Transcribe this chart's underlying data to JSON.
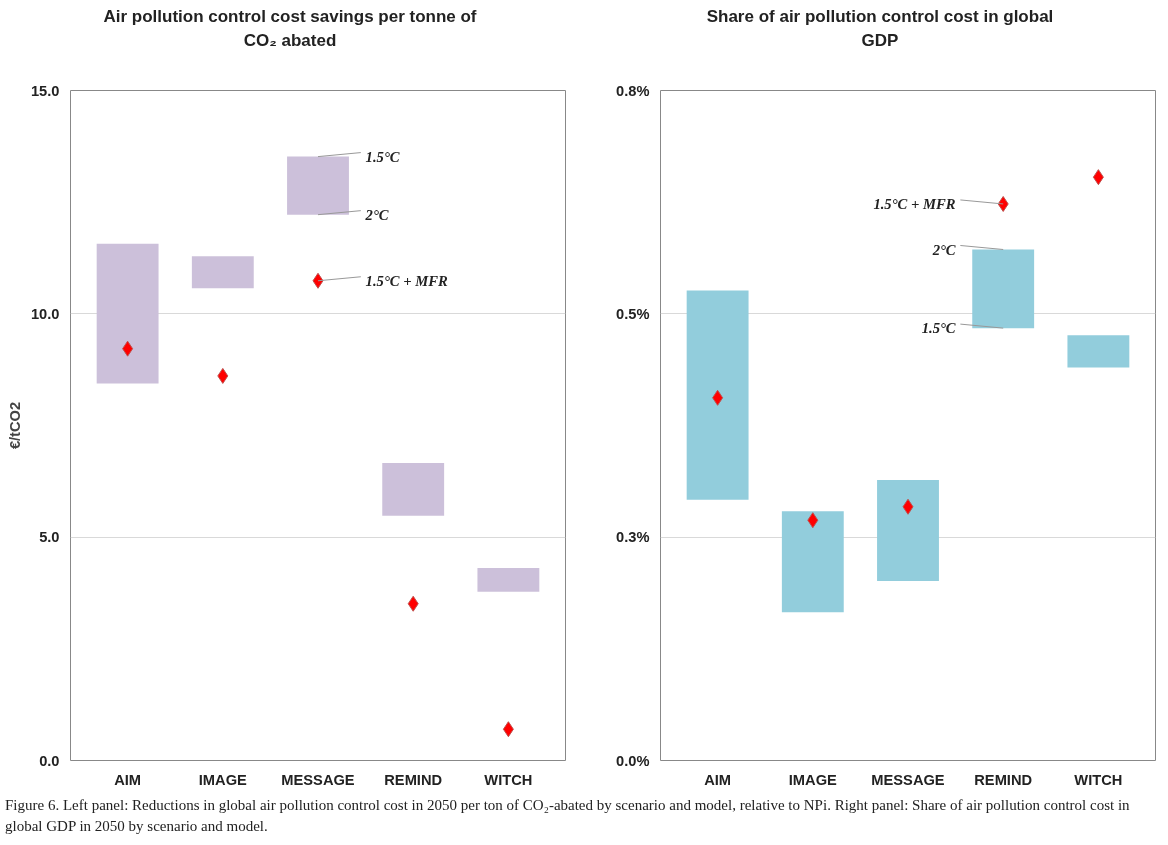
{
  "chart_data": [
    {
      "type": "bar",
      "title": "Air pollution control cost savings per tonne of CO₂ abated",
      "ylabel": "€/tCO2",
      "categories": [
        "AIM",
        "IMAGE",
        "MESSAGE",
        "REMIND",
        "WITCH"
      ],
      "series": [
        {
          "color": "#ccc0da",
          "base": [
            8.44,
            10.57,
            12.22,
            5.48,
            3.78
          ],
          "values": [
            3.13,
            0.72,
            1.3,
            1.18,
            0.53
          ]
        },
        {
          "type": "scatter",
          "color": "#ff0000",
          "marker": "diamond",
          "x": [
            "AIM",
            "IMAGE",
            "MESSAGE",
            "REMIND",
            "WITCH"
          ],
          "values": [
            9.22,
            8.61,
            10.74,
            3.51,
            0.7
          ]
        }
      ],
      "ylim": [
        0,
        15
      ],
      "yticks": [
        {
          "value": 0,
          "label": "0.0"
        },
        {
          "value": 5,
          "label": "5.0"
        },
        {
          "value": 10,
          "label": "10.0"
        },
        {
          "value": 15,
          "label": "15.0"
        }
      ],
      "grid": "y",
      "annotations": [
        {
          "text": "1.5°C",
          "x": "MESSAGE",
          "y": 13.52
        },
        {
          "text": "2°C",
          "x": "MESSAGE",
          "y": 12.22
        },
        {
          "text": "1.5°C + MFR",
          "x": "MESSAGE",
          "y": 10.74
        },
        "Figure 6. Left panel: Reductions in global air pollution control cost in 2050 per ton of CO₂-abated by scenario and model, relative to NPi. Right panel: Share of air pollution control cost in global GDP in 2050 by scenario and model."
      ]
    },
    {
      "type": "bar",
      "title": "Share of air pollution control cost in global  GDP",
      "categories": [
        "AIM",
        "IMAGE",
        "MESSAGE",
        "REMIND",
        "WITCH"
      ],
      "series": [
        {
          "color": "#92cddc",
          "base": [
            0.292,
            0.166,
            0.201,
            0.484,
            0.44
          ],
          "values": [
            0.234,
            0.113,
            0.113,
            0.088,
            0.036
          ]
        },
        {
          "type": "scatter",
          "color": "#ff0000",
          "marker": "diamond",
          "x": [
            "AIM",
            "IMAGE",
            "MESSAGE",
            "REMIND",
            "WITCH"
          ],
          "values": [
            0.406,
            0.269,
            0.284,
            0.623,
            0.653
          ]
        }
      ],
      "ylim": [
        0,
        0.75
      ],
      "yticks": [
        {
          "value": 0,
          "label": "0.0%"
        },
        {
          "value": 0.25,
          "label": "0.3%"
        },
        {
          "value": 0.5,
          "label": "0.5%"
        },
        {
          "value": 0.75,
          "label": "0.8%"
        }
      ],
      "grid": "y",
      "annotations": [
        {
          "text": "1.5°C + MFR",
          "x": "REMIND",
          "y": 0.623
        },
        {
          "text": "2°C",
          "x": "REMIND",
          "y": 0.572
        },
        {
          "text": "1.5°C",
          "x": "REMIND",
          "y": 0.484
        }
      ]
    }
  ]
}
